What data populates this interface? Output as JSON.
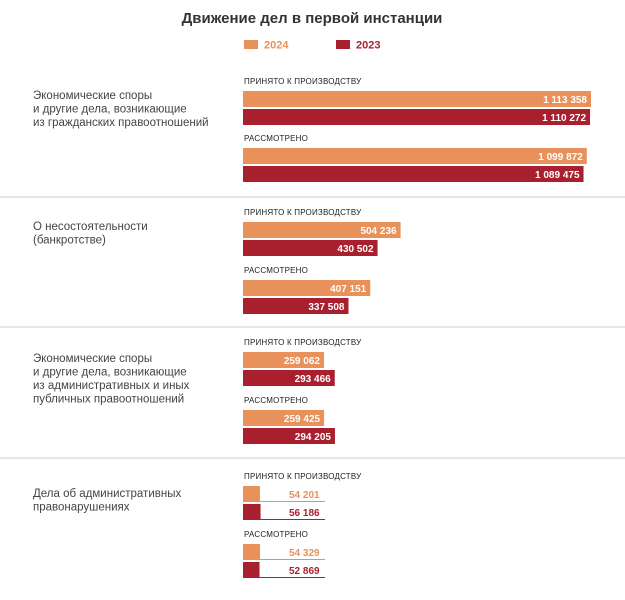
{
  "chart_data": {
    "type": "bar",
    "orientation": "horizontal",
    "title": "Движение дел в первой инстанции",
    "legend_position": "top",
    "series": [
      {
        "name": "2024",
        "color": "#E8915A"
      },
      {
        "name": "2023",
        "color": "#A81F2E"
      }
    ],
    "groups": [
      {
        "label_lines": [
          "Экономические споры",
          "и другие дела, возникающие",
          "из гражданских правоотношений"
        ],
        "metrics": [
          {
            "label": "ПРИНЯТО К ПРОИЗВОДСТВУ",
            "values": [
              1113358,
              1110272
            ],
            "display": [
              "1 113 358",
              "1 110 272"
            ]
          },
          {
            "label": "РАССМОТРЕНО",
            "values": [
              1099872,
              1089475
            ],
            "display": [
              "1 099 872",
              "1 089 475"
            ]
          }
        ]
      },
      {
        "label_lines": [
          "О несостоятельности",
          "(банкротстве)"
        ],
        "metrics": [
          {
            "label": "ПРИНЯТО К ПРОИЗВОДСТВУ",
            "values": [
              504236,
              430502
            ],
            "display": [
              "504 236",
              "430 502"
            ]
          },
          {
            "label": "РАССМОТРЕНО",
            "values": [
              407151,
              337508
            ],
            "display": [
              "407 151",
              "337 508"
            ]
          }
        ]
      },
      {
        "label_lines": [
          "Экономические споры",
          "и другие дела, возникающие",
          "из административных и иных",
          "публичных правоотношений"
        ],
        "metrics": [
          {
            "label": "ПРИНЯТО К ПРОИЗВОДСТВУ",
            "values": [
              259062,
              293466
            ],
            "display": [
              "259 062",
              "293 466"
            ]
          },
          {
            "label": "РАССМОТРЕНО",
            "values": [
              259425,
              294205
            ],
            "display": [
              "259 425",
              "294 205"
            ]
          }
        ]
      },
      {
        "label_lines": [
          "Дела об административных",
          "правонарушениях"
        ],
        "metrics": [
          {
            "label": "ПРИНЯТО К ПРОИЗВОДСТВУ",
            "values": [
              54201,
              56186
            ],
            "display": [
              "54 201",
              "56 186"
            ]
          },
          {
            "label": "РАССМОТРЕНО",
            "values": [
              54329,
              52869
            ],
            "display": [
              "54 329",
              "52 869"
            ]
          }
        ]
      }
    ]
  }
}
